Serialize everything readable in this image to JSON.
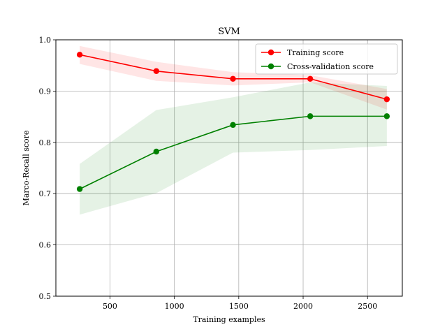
{
  "chart_data": {
    "type": "line",
    "title": "SVM",
    "xlabel": "Training examples",
    "ylabel": "Marco-Recall score",
    "xlim": [
      80,
      2770
    ],
    "ylim": [
      0.5,
      1.0
    ],
    "xticks": [
      500,
      1000,
      1500,
      2000,
      2500
    ],
    "yticks": [
      0.5,
      0.6,
      0.7,
      0.8,
      0.9,
      1.0
    ],
    "xtick_labels": [
      "500",
      "1000",
      "1500",
      "2000",
      "2500"
    ],
    "ytick_labels": [
      "0.5",
      "0.6",
      "0.7",
      "0.8",
      "0.9",
      "1.0"
    ],
    "grid": true,
    "legend_position": "top-right",
    "x": [
      265,
      860,
      1455,
      2055,
      2650
    ],
    "series": [
      {
        "name": "Training score",
        "color": "#ff0000",
        "fill_color": "#ff0000",
        "values": [
          0.971,
          0.939,
          0.924,
          0.924,
          0.884
        ],
        "upper": [
          0.988,
          0.957,
          0.937,
          0.931,
          0.904
        ],
        "lower": [
          0.953,
          0.92,
          0.911,
          0.917,
          0.864
        ]
      },
      {
        "name": "Cross-validation score",
        "color": "#008000",
        "fill_color": "#008000",
        "values": [
          0.709,
          0.782,
          0.834,
          0.851,
          0.851
        ],
        "upper": [
          0.758,
          0.863,
          0.888,
          0.917,
          0.91
        ],
        "lower": [
          0.659,
          0.701,
          0.78,
          0.785,
          0.793
        ]
      }
    ]
  }
}
